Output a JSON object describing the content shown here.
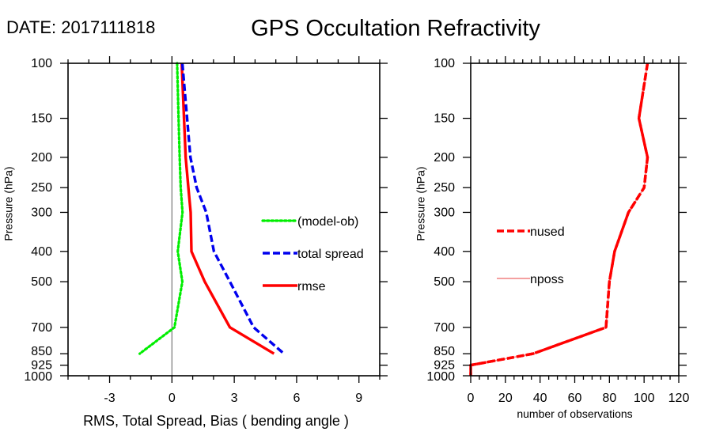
{
  "header": {
    "date_label": "DATE: 2017111818",
    "title": "GPS Occultation Refractivity"
  },
  "chart_data": [
    {
      "type": "line",
      "name": "rms-spread-bias",
      "xlabel": "RMS, Total Spread, Bias ( bending angle )",
      "ylabel": "Pressure (hPa)",
      "xlim": [
        -5,
        10
      ],
      "ylim": [
        1000,
        100
      ],
      "y_scale": "log",
      "x_ticks": [
        -3,
        0,
        3,
        6,
        9
      ],
      "x_tick_labels": [
        "-3",
        "0",
        "3",
        "6",
        "9"
      ],
      "x_minor_step": 1,
      "y_ticks": [
        100,
        150,
        200,
        250,
        300,
        400,
        500,
        700,
        850,
        925,
        1000
      ],
      "y_tick_labels": [
        "100",
        "150",
        "200",
        "250",
        "300",
        "400",
        "500",
        "700",
        "850",
        "925",
        "1000"
      ],
      "zero_line": 0,
      "grid": false,
      "legend_position": "center-right",
      "y": [
        100,
        150,
        200,
        250,
        300,
        400,
        500,
        700,
        850
      ],
      "series": [
        {
          "name": "(model-ob)",
          "color": "#00ee00",
          "style": "dotted",
          "values": [
            0.25,
            0.32,
            0.37,
            0.42,
            0.51,
            0.28,
            0.5,
            0.12,
            -1.55
          ]
        },
        {
          "name": "total spread",
          "color": "#0000ee",
          "style": "dashed",
          "values": [
            0.5,
            0.73,
            0.89,
            1.19,
            1.65,
            2.02,
            2.79,
            3.93,
            5.39
          ]
        },
        {
          "name": "rmse",
          "color": "#ff0000",
          "style": "solid",
          "values": [
            0.47,
            0.58,
            0.66,
            0.79,
            0.9,
            0.94,
            1.58,
            2.79,
            4.91
          ]
        }
      ]
    },
    {
      "type": "line",
      "name": "observation-count",
      "xlabel": "number of observations",
      "ylabel": "Pressure (hPa)",
      "xlim": [
        0,
        120
      ],
      "ylim": [
        1000,
        100
      ],
      "y_scale": "log",
      "x_ticks": [
        0,
        20,
        40,
        60,
        80,
        100,
        120
      ],
      "x_tick_labels": [
        "0",
        "20",
        "40",
        "60",
        "80",
        "100",
        "120"
      ],
      "x_minor_step": 5,
      "y_ticks": [
        100,
        150,
        200,
        250,
        300,
        400,
        500,
        700,
        850,
        925,
        1000
      ],
      "y_tick_labels": [
        "100",
        "150",
        "200",
        "250",
        "300",
        "400",
        "500",
        "700",
        "850",
        "925",
        "1000"
      ],
      "grid": false,
      "legend_position": "center-left",
      "y": [
        100,
        150,
        200,
        250,
        300,
        400,
        500,
        700,
        850,
        925,
        1000
      ],
      "series": [
        {
          "name": "nused",
          "color": "#ff0000",
          "style": "dashed",
          "values": [
            102,
            97,
            102,
            100,
            91,
            83,
            80,
            78,
            36,
            0,
            0
          ]
        },
        {
          "name": "nposs",
          "color": "#f08080",
          "style": "solid",
          "values": [
            102,
            97,
            102,
            100,
            91,
            83,
            80,
            78,
            36,
            0,
            0
          ]
        }
      ]
    }
  ]
}
